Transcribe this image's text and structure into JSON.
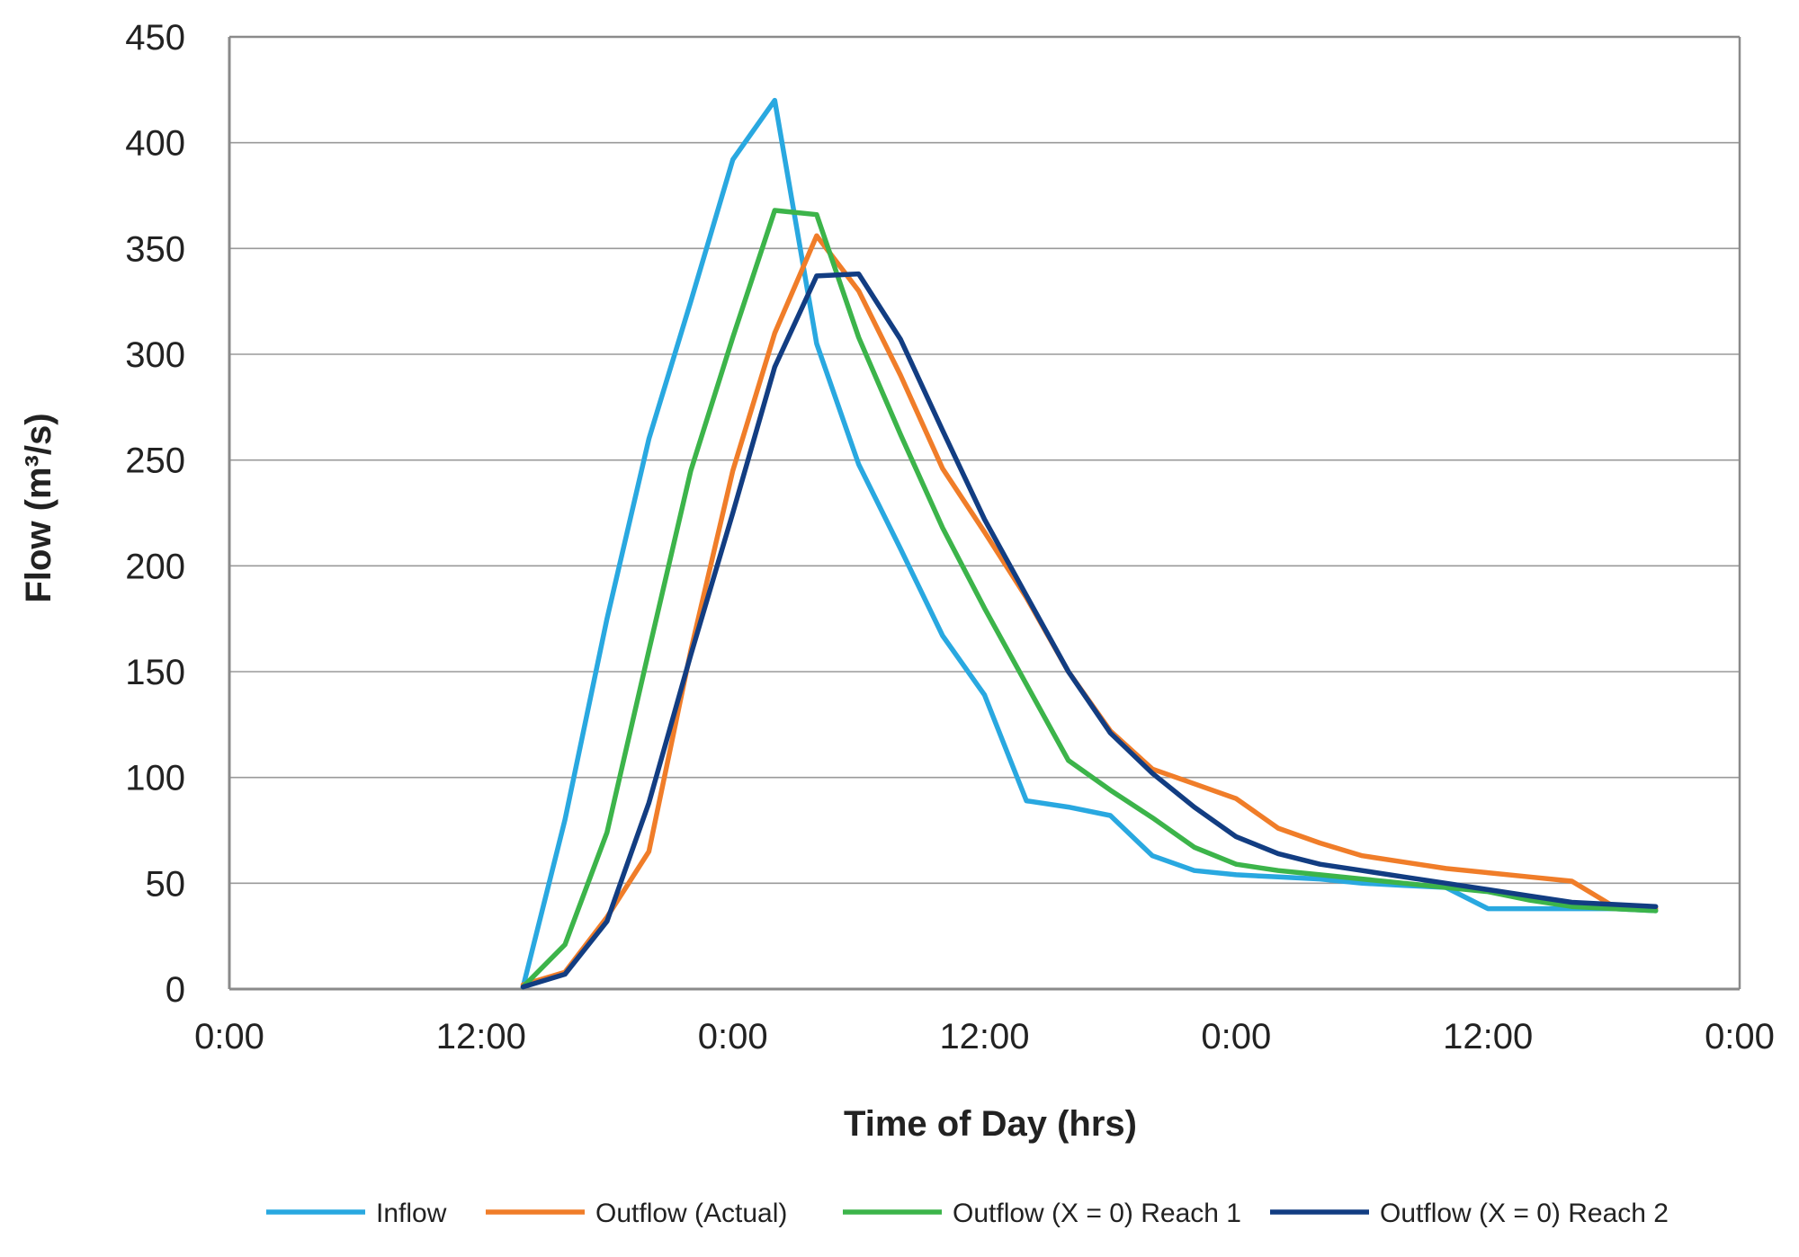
{
  "chart_data": {
    "type": "line",
    "title": "",
    "xlabel": "Time of Day (hrs)",
    "ylabel": "Flow (m³/s)",
    "x_unit": "hours",
    "xlim": [
      0,
      72
    ],
    "ylim": [
      0,
      450
    ],
    "x_ticks": [
      0,
      12,
      24,
      36,
      48,
      60,
      72
    ],
    "x_tick_labels": [
      "0:00",
      "12:00",
      "0:00",
      "12:00",
      "0:00",
      "12:00",
      "0:00"
    ],
    "y_ticks": [
      0,
      50,
      100,
      150,
      200,
      250,
      300,
      350,
      400,
      450
    ],
    "y_tick_labels": [
      "0",
      "50",
      "100",
      "150",
      "200",
      "250",
      "300",
      "350",
      "400",
      "450"
    ],
    "grid": "horizontal",
    "legend": "bottom",
    "x": [
      14,
      16,
      18,
      20,
      22,
      24,
      26,
      28,
      30,
      32,
      34,
      36,
      38,
      40,
      42,
      44,
      46,
      48,
      50,
      52,
      54,
      56,
      58,
      60,
      62,
      64,
      66,
      68
    ],
    "series": [
      {
        "name": "Inflow",
        "color": "#29a8e0",
        "values": [
          1,
          80,
          175,
          260,
          325,
          392,
          420,
          305,
          248,
          208,
          167,
          139,
          89,
          86,
          82,
          63,
          56,
          54,
          53,
          52,
          50,
          49,
          48,
          38,
          38,
          38,
          38,
          37
        ]
      },
      {
        "name": "Outflow (Actual)",
        "color": "#f07d29",
        "values": [
          2,
          8,
          34,
          65,
          160,
          245,
          310,
          356,
          330,
          290,
          246,
          216,
          185,
          150,
          122,
          104,
          97,
          90,
          76,
          69,
          63,
          60,
          57,
          55,
          53,
          51,
          39,
          38
        ]
      },
      {
        "name": "Outflow (X = 0) Reach 1",
        "color": "#3cb44a",
        "values": [
          1,
          21,
          74,
          160,
          245,
          308,
          368,
          366,
          308,
          262,
          218,
          180,
          144,
          108,
          94,
          81,
          67,
          59,
          56,
          54,
          52,
          50,
          48,
          46,
          42,
          39,
          38,
          37
        ]
      },
      {
        "name": "Outflow (X = 0) Reach 2",
        "color": "#123d82",
        "values": [
          1,
          7,
          32,
          88,
          158,
          225,
          294,
          337,
          338,
          307,
          264,
          222,
          186,
          150,
          121,
          102,
          86,
          72,
          64,
          59,
          56,
          53,
          50,
          47,
          44,
          41,
          40,
          39
        ]
      }
    ]
  }
}
